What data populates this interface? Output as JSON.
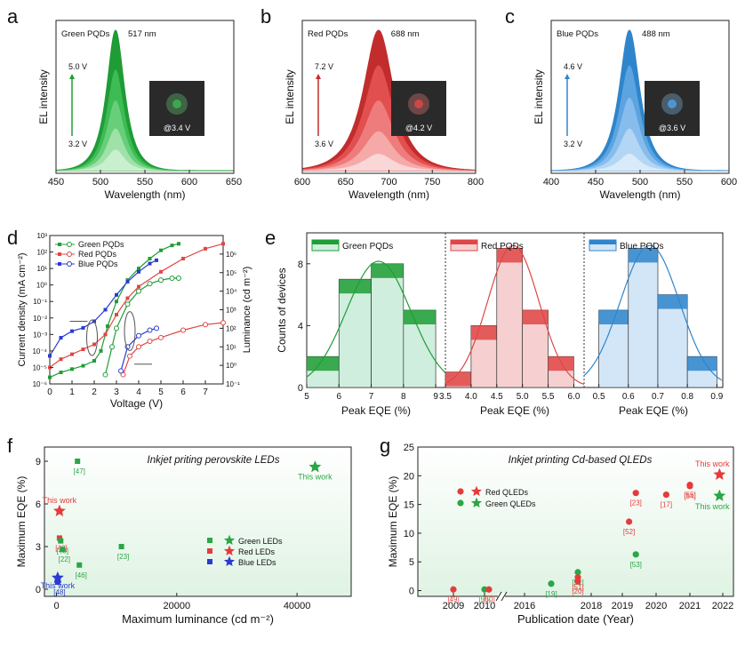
{
  "chart_data": [
    {
      "panel": "a",
      "type": "area",
      "legend": "Green PQDs",
      "peak_label": "517 nm",
      "peak": 517,
      "width": 14,
      "xlim": [
        450,
        650
      ],
      "xticks": [
        450,
        500,
        550,
        600,
        650
      ],
      "xlabel": "Wavelength (nm)",
      "ylabel": "EL intensity",
      "voltage_top": "5.0 V",
      "voltage_bottom": "3.2 V",
      "inset_label": "@3.4 V",
      "levels": [
        0.15,
        0.3,
        0.5,
        0.72,
        1.0
      ],
      "colors": [
        "#c9efcf",
        "#9fe2a9",
        "#67cf79",
        "#3dbb54",
        "#1f9c36"
      ]
    },
    {
      "panel": "b",
      "type": "area",
      "legend": "Red PQDs",
      "peak_label": "688 nm",
      "peak": 688,
      "width": 24,
      "xlim": [
        600,
        800
      ],
      "xticks": [
        600,
        650,
        700,
        750,
        800
      ],
      "xlabel": "Wavelength (nm)",
      "ylabel": "EL intensity",
      "voltage_top": "7.2 V",
      "voltage_bottom": "3.6 V",
      "inset_label": "@4.2 V",
      "levels": [
        0.12,
        0.28,
        0.5,
        0.75,
        1.0
      ],
      "colors": [
        "#fbd6d6",
        "#f6a9a9",
        "#ef7c7c",
        "#e24f4f",
        "#c22c2c"
      ]
    },
    {
      "panel": "c",
      "type": "area",
      "legend": "Blue PQDs",
      "peak_label": "488 nm",
      "peak": 488,
      "width": 16,
      "xlim": [
        400,
        600
      ],
      "xticks": [
        400,
        450,
        500,
        550,
        600
      ],
      "xlabel": "Wavelength (nm)",
      "ylabel": "EL intensity",
      "voltage_top": "4.6 V",
      "voltage_bottom": "3.2 V",
      "inset_label": "@3.6 V",
      "levels": [
        0.12,
        0.3,
        0.52,
        0.75,
        1.0
      ],
      "colors": [
        "#d9ebfb",
        "#b3d6f5",
        "#86bdec",
        "#5ba4e0",
        "#2f85cc"
      ]
    },
    {
      "panel": "d",
      "type": "line",
      "xlabel": "Voltage (V)",
      "ylabel": "Current density (mA cm⁻²)",
      "ylabel_right": "Luminance (cd m⁻²)",
      "xlim": [
        0,
        7.8
      ],
      "xticks": [
        0,
        1,
        2,
        3,
        4,
        5,
        6,
        7
      ],
      "ylim_log": [
        -6,
        3
      ],
      "ylim_right_log": [
        -1,
        7
      ],
      "yticks_left": [
        "10⁻⁶",
        "10⁻⁵",
        "10⁻⁴",
        "10⁻³",
        "10⁻²",
        "10⁻¹",
        "10⁰",
        "10¹",
        "10²",
        "10³"
      ],
      "yticks_right": [
        "10⁻¹",
        "10⁰",
        "10¹",
        "10²",
        "10³",
        "10⁴",
        "10⁵",
        "10⁶"
      ],
      "series": [
        {
          "name": "Green PQDs",
          "color": "#1e9e35",
          "marker": "square",
          "current": [
            [
              0,
              -5.6
            ],
            [
              0.5,
              -5.3
            ],
            [
              1,
              -5.1
            ],
            [
              1.5,
              -4.9
            ],
            [
              2,
              -4.6
            ],
            [
              2.3,
              -4.0
            ],
            [
              2.6,
              -2.5
            ],
            [
              3,
              -1.0
            ],
            [
              3.5,
              0.3
            ],
            [
              4,
              1.0
            ],
            [
              4.5,
              1.6
            ],
            [
              5,
              2.1
            ],
            [
              5.5,
              2.4
            ],
            [
              5.8,
              2.5
            ]
          ],
          "luminance": [
            [
              2.5,
              -0.5
            ],
            [
              2.8,
              1.0
            ],
            [
              3,
              2.0
            ],
            [
              3.5,
              3.3
            ],
            [
              4,
              4.0
            ],
            [
              4.5,
              4.4
            ],
            [
              5,
              4.6
            ],
            [
              5.5,
              4.7
            ],
            [
              5.8,
              4.7
            ]
          ]
        },
        {
          "name": "Red PQDs",
          "color": "#e04646",
          "marker": "square",
          "current": [
            [
              0,
              -5.0
            ],
            [
              0.5,
              -4.5
            ],
            [
              1,
              -4.2
            ],
            [
              1.5,
              -3.9
            ],
            [
              2,
              -3.6
            ],
            [
              2.5,
              -3.0
            ],
            [
              3,
              -1.8
            ],
            [
              3.5,
              -0.8
            ],
            [
              4,
              -0.1
            ],
            [
              5,
              0.8
            ],
            [
              6,
              1.6
            ],
            [
              7,
              2.2
            ],
            [
              7.8,
              2.5
            ]
          ],
          "luminance": [
            [
              3.3,
              -0.5
            ],
            [
              3.6,
              0.5
            ],
            [
              4,
              1.0
            ],
            [
              4.5,
              1.3
            ],
            [
              5,
              1.5
            ],
            [
              6,
              1.9
            ],
            [
              7,
              2.2
            ],
            [
              7.8,
              2.3
            ]
          ]
        },
        {
          "name": "Blue PQDs",
          "color": "#2a3bd1",
          "marker": "square",
          "current": [
            [
              0,
              -4.3
            ],
            [
              0.5,
              -3.2
            ],
            [
              1,
              -2.8
            ],
            [
              1.5,
              -2.6
            ],
            [
              2,
              -2.2
            ],
            [
              2.5,
              -1.5
            ],
            [
              3,
              -0.6
            ],
            [
              3.5,
              0.2
            ],
            [
              4,
              0.8
            ],
            [
              4.5,
              1.3
            ],
            [
              4.8,
              1.5
            ]
          ],
          "luminance": [
            [
              3.2,
              -0.3
            ],
            [
              3.5,
              1.0
            ],
            [
              4,
              1.6
            ],
            [
              4.5,
              1.9
            ],
            [
              4.8,
              2.0
            ]
          ]
        }
      ]
    },
    {
      "panel": "e",
      "type": "bar",
      "ylabel": "Counts of devices",
      "ylim": [
        0,
        10
      ],
      "yticks": [
        0,
        4,
        8
      ],
      "groups": [
        {
          "name": "Green PQDs",
          "xlabel": "Peak EQE (%)",
          "xticks": [
            "5",
            "6",
            "7",
            "8",
            "9"
          ],
          "xlim": [
            5,
            9.3
          ],
          "bins": [
            5.5,
            6.5,
            7.5,
            8.5
          ],
          "values": [
            2,
            7,
            8,
            5
          ],
          "color": "#1e9e35",
          "fill": "#cfeede",
          "extra_bins": [
            5.5,
            6.5,
            7.5,
            8.5
          ]
        },
        {
          "name": "Red PQDs",
          "xlabel": "Peak EQE (%)",
          "xticks": [
            "3.5",
            "4.0",
            "4.5",
            "5.0",
            "5.5",
            "6.0"
          ],
          "xlim": [
            3.5,
            6.2
          ],
          "bins": [
            3.75,
            4.25,
            4.75,
            5.25,
            5.75
          ],
          "values": [
            1,
            4,
            9,
            5,
            2
          ],
          "color": "#e04646",
          "fill": "#f6d0d0"
        },
        {
          "name": "Blue PQDs",
          "xlabel": "Peak EQE (%)",
          "xticks": [
            "0.5",
            "0.6",
            "0.7",
            "0.8",
            "0.9"
          ],
          "xlim": [
            0.45,
            0.92
          ],
          "bins": [
            0.55,
            0.65,
            0.75,
            0.85
          ],
          "values": [
            5,
            9,
            6,
            2
          ],
          "color": "#2f85cc",
          "fill": "#d3e6f8"
        }
      ]
    },
    {
      "panel": "f",
      "type": "scatter",
      "title": "Inkjet priting perovskite LEDs",
      "xlabel": "Maximum luminance (cd m⁻²)",
      "ylabel": "Maximum EQE (%)",
      "xlim": [
        -2000,
        49000
      ],
      "ylim": [
        -0.5,
        10
      ],
      "xticks": [
        0,
        20000,
        40000
      ],
      "yticks": [
        0,
        3,
        6,
        9
      ],
      "legend": [
        "Green LEDs",
        "Red LEDs",
        "Blue LEDs"
      ],
      "points": [
        {
          "x": 3500,
          "y": 9.0,
          "label": "[47]",
          "color": "green"
        },
        {
          "x": 500,
          "y": 3.6,
          "label": "[48]",
          "color": "red"
        },
        {
          "x": 700,
          "y": 3.4,
          "label": "[48]",
          "color": "green"
        },
        {
          "x": 1000,
          "y": 2.8,
          "label": "[22]",
          "color": "green"
        },
        {
          "x": 3800,
          "y": 1.7,
          "label": "[46]",
          "color": "green"
        },
        {
          "x": 10800,
          "y": 3.0,
          "label": "[23]",
          "color": "green"
        },
        {
          "x": 200,
          "y": 0.5,
          "label": "[48]",
          "color": "blue"
        }
      ],
      "stars": [
        {
          "x": 43000,
          "y": 8.6,
          "label": "This work",
          "color": "green"
        },
        {
          "x": 500,
          "y": 5.5,
          "label": "This work",
          "color": "red"
        },
        {
          "x": 200,
          "y": 0.8,
          "label": "This work",
          "color": "blue"
        }
      ]
    },
    {
      "panel": "g",
      "type": "scatter",
      "title": "Inkjet printing Cd-based QLEDs",
      "xlabel": "Publication date (Year)",
      "ylabel": "Maximum EQE (%)",
      "ylim": [
        -1,
        25
      ],
      "yticks": [
        0,
        5,
        10,
        15,
        20,
        25
      ],
      "xticks": [
        "2009",
        "2010",
        "2016",
        "2018",
        "2019",
        "2020",
        "2021",
        "2022"
      ],
      "legend": [
        "Red QLEDs",
        "Green QLEDs"
      ],
      "points": [
        {
          "x": "2009",
          "y": 0.2,
          "label": "[49]",
          "color": "red"
        },
        {
          "x": "2010",
          "y": 0.2,
          "label": "[50]",
          "color": "green"
        },
        {
          "x": "2010",
          "y": 0.2,
          "label": "[50]",
          "color": "red"
        },
        {
          "x": "2016.8",
          "y": 1.2,
          "label": "[19]",
          "color": "green"
        },
        {
          "x": "2017.6",
          "y": 3.2,
          "label": "[51]",
          "color": "green"
        },
        {
          "x": "2017.6",
          "y": 2.3,
          "label": "[51]",
          "color": "red"
        },
        {
          "x": "2017.6",
          "y": 1.6,
          "label": "[20]",
          "color": "red"
        },
        {
          "x": "2019.2",
          "y": 12,
          "label": "[52]",
          "color": "red"
        },
        {
          "x": "2019.4",
          "y": 17,
          "label": "[23]",
          "color": "red"
        },
        {
          "x": "2019.4",
          "y": 6.3,
          "label": "[53]",
          "color": "green"
        },
        {
          "x": "2020.3",
          "y": 16.7,
          "label": "[17]",
          "color": "red"
        },
        {
          "x": "2021",
          "y": 18.2,
          "label": "[54]",
          "color": "red"
        },
        {
          "x": "2021",
          "y": 18.4,
          "label": "[55]",
          "color": "red"
        }
      ],
      "stars": [
        {
          "x": "2021.9",
          "y": 20.2,
          "label": "This work",
          "color": "red"
        },
        {
          "x": "2021.9",
          "y": 16.5,
          "label": "This work",
          "color": "green"
        }
      ]
    }
  ],
  "panel_letters": [
    "a",
    "b",
    "c",
    "d",
    "e",
    "f",
    "g"
  ]
}
